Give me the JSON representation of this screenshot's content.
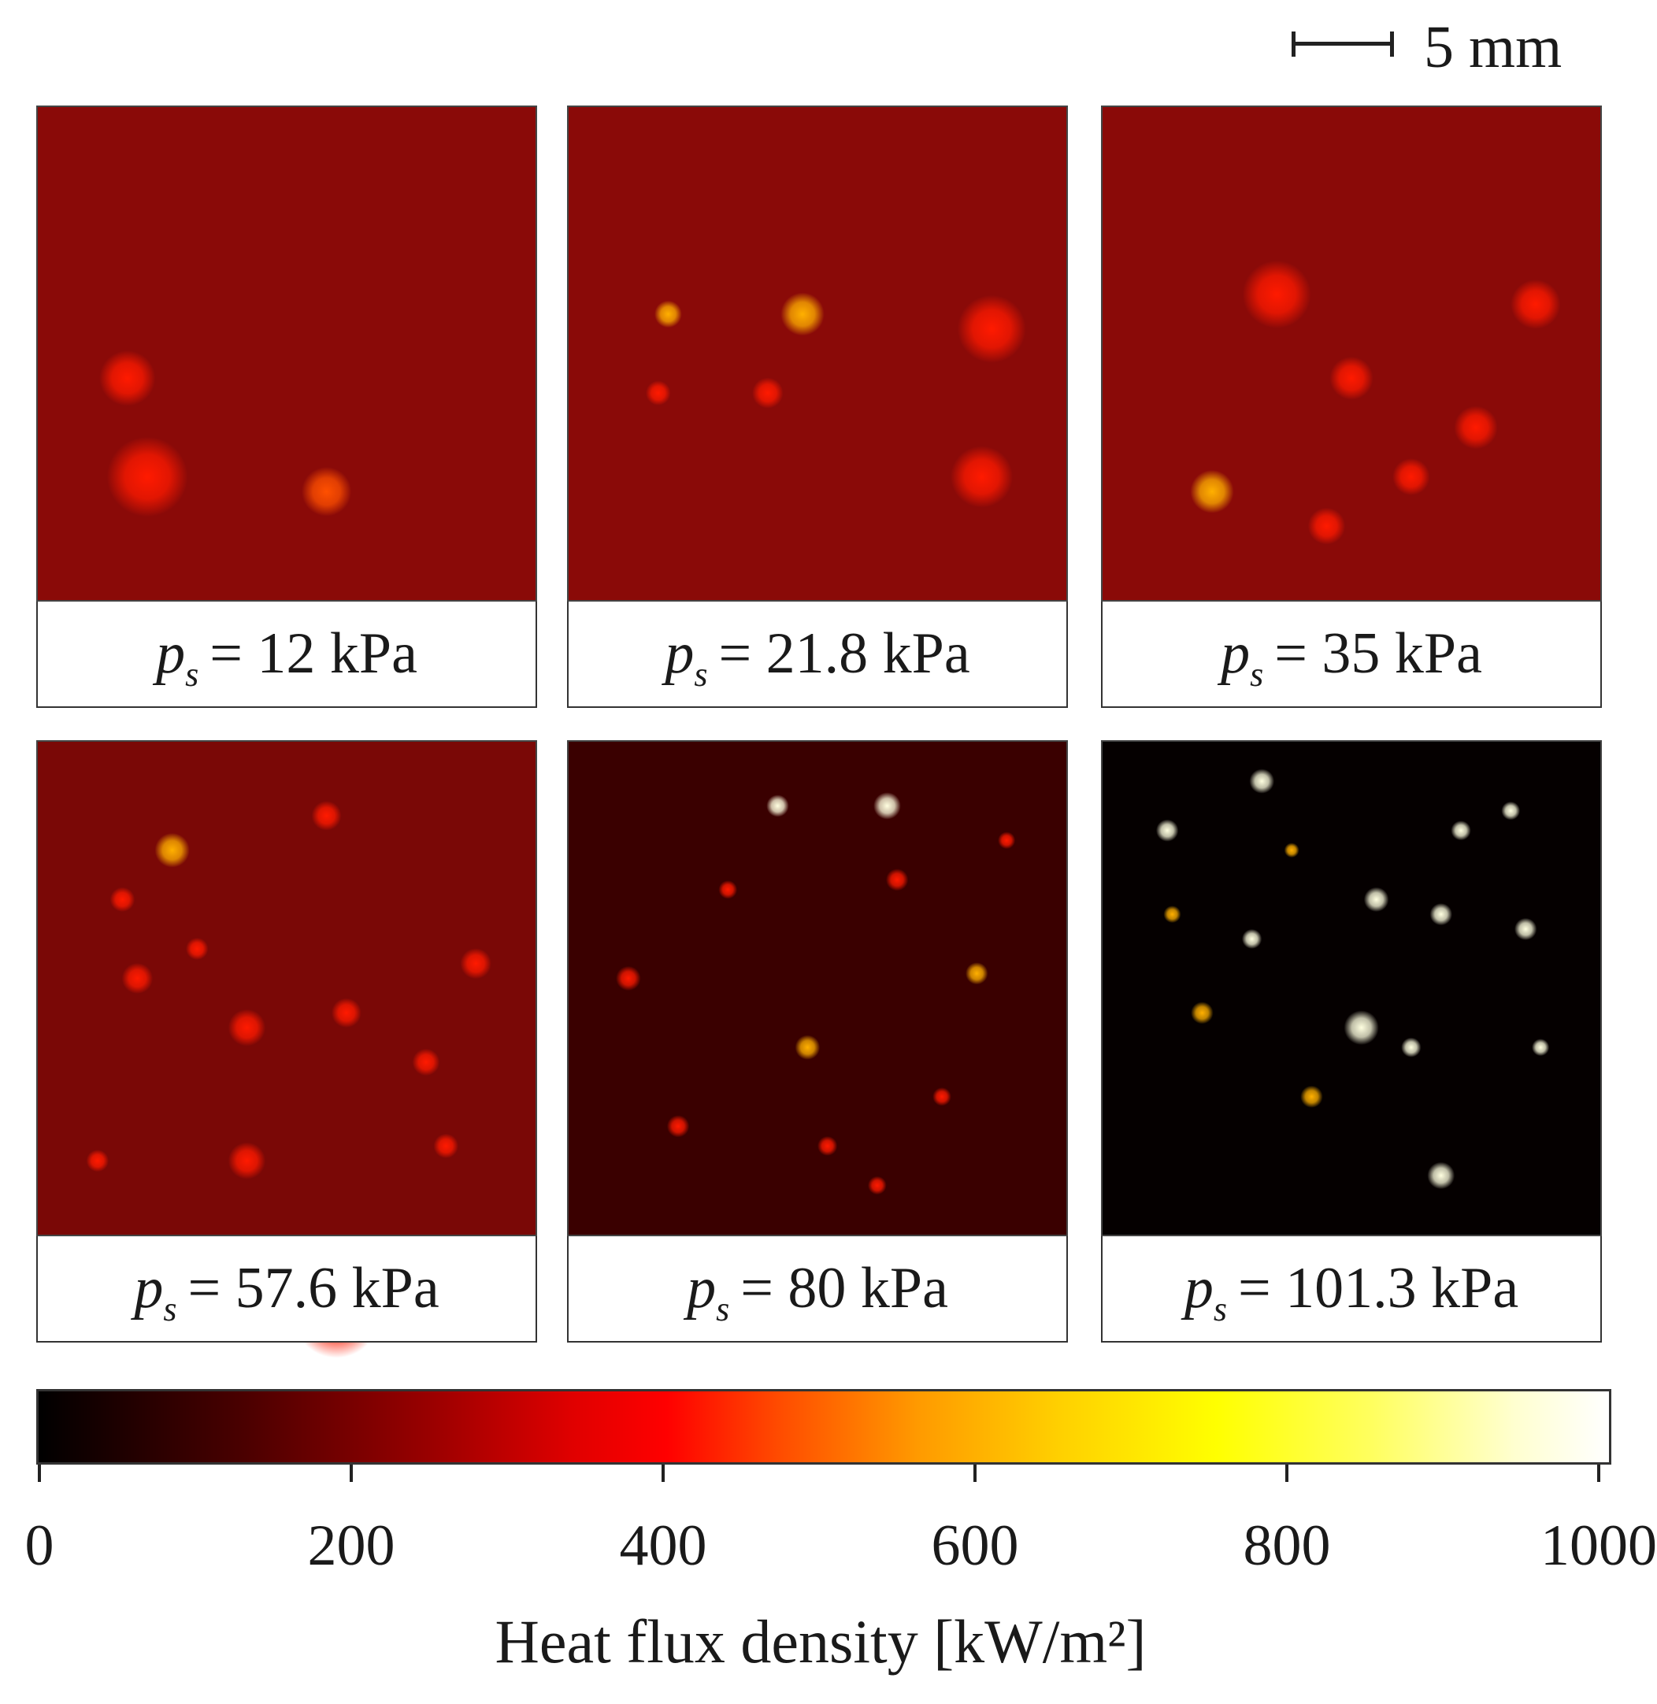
{
  "scale_bar": {
    "label": "5 mm"
  },
  "chart_data": {
    "type": "heatmap",
    "colormap": "hot",
    "panels": [
      {
        "symbol": "p",
        "subscript": "s",
        "value_text": "= 12 kPa",
        "pressure_kPa": 12
      },
      {
        "symbol": "p",
        "subscript": "s",
        "value_text": "= 21.8 kPa",
        "pressure_kPa": 21.8
      },
      {
        "symbol": "p",
        "subscript": "s",
        "value_text": "= 35 kPa",
        "pressure_kPa": 35
      },
      {
        "symbol": "p",
        "subscript": "s",
        "value_text": "= 57.6 kPa",
        "pressure_kPa": 57.6
      },
      {
        "symbol": "p",
        "subscript": "s",
        "value_text": "= 80 kPa",
        "pressure_kPa": 80
      },
      {
        "symbol": "p",
        "subscript": "s",
        "value_text": "= 101.3 kPa",
        "pressure_kPa": 101.3
      }
    ],
    "colorbar": {
      "label": "Heat flux density [kW/m²]",
      "range": [
        0,
        1000
      ],
      "ticks": [
        "0",
        "200",
        "400",
        "600",
        "800",
        "1000"
      ],
      "tick_values": [
        0,
        200,
        400,
        600,
        800,
        1000
      ]
    }
  }
}
